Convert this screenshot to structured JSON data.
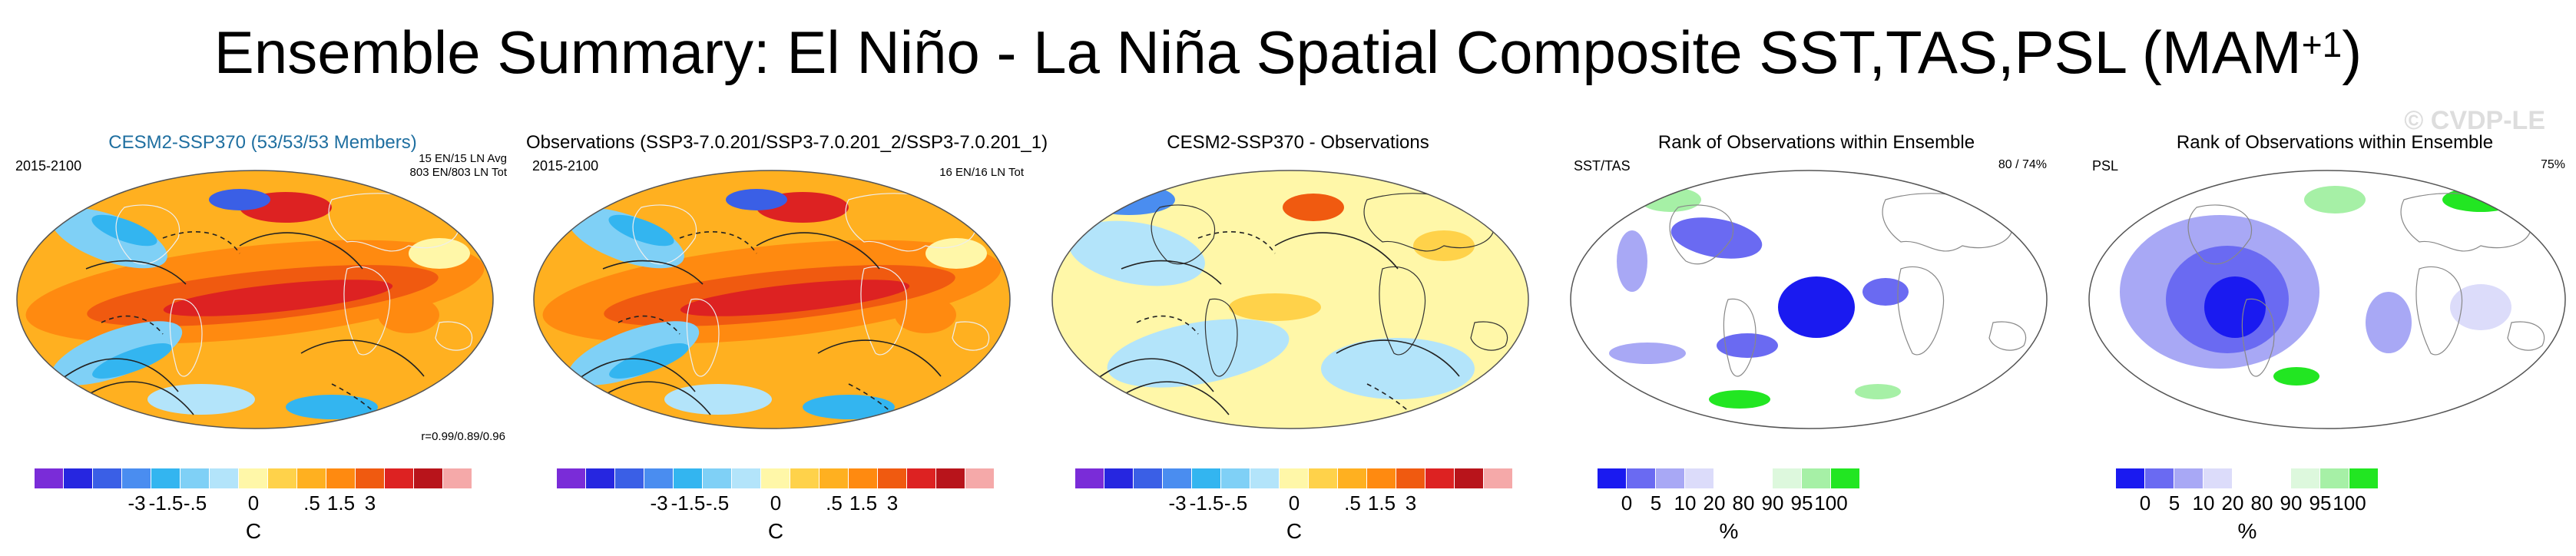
{
  "title": {
    "text": "Ensemble Summary: El Niño - La Niña Spatial Composite SST,TAS,PSL (MAM",
    "superscript": "+1",
    "suffix": ")"
  },
  "watermark": "© CVDP-LE",
  "chart_data": [
    {
      "type": "heatmap",
      "title": "CESM2-SSP370 (53/53/53 Members)",
      "title_color": "#1f6fa0",
      "years": "2015-2100",
      "note_right": [
        "15 EN/15 LN Avg",
        "803 EN/803 LN Tot"
      ],
      "correlation": "r=0.99/0.89/0.96",
      "colorbar": {
        "ticks": [
          "-3",
          "-1.5",
          "-.5",
          "0",
          ".5",
          "1.5",
          "3"
        ],
        "unit": "C",
        "colors": [
          "#7a2cd8",
          "#2626e0",
          "#3a5fe6",
          "#4a8df0",
          "#33b5f0",
          "#7fd0f6",
          "#b3e4fa",
          "#fff7a8",
          "#ffd24a",
          "#ffb020",
          "#ff8a10",
          "#f05a10",
          "#dd2222",
          "#b8141b",
          "#f5a9a9"
        ]
      }
    },
    {
      "type": "heatmap",
      "title": "Observations (SSP3-7.0.201/SSP3-7.0.201_2/SSP3-7.0.201_1)",
      "years": "2015-2100",
      "note_right": [
        "16 EN/16 LN Tot"
      ],
      "colorbar": {
        "ticks": [
          "-3",
          "-1.5",
          "-.5",
          "0",
          ".5",
          "1.5",
          "3"
        ],
        "unit": "C",
        "colors": [
          "#7a2cd8",
          "#2626e0",
          "#3a5fe6",
          "#4a8df0",
          "#33b5f0",
          "#7fd0f6",
          "#b3e4fa",
          "#fff7a8",
          "#ffd24a",
          "#ffb020",
          "#ff8a10",
          "#f05a10",
          "#dd2222",
          "#b8141b",
          "#f5a9a9"
        ]
      }
    },
    {
      "type": "heatmap",
      "title": "CESM2-SSP370 - Observations",
      "colorbar": {
        "ticks": [
          "-3",
          "-1.5",
          "-.5",
          "0",
          ".5",
          "1.5",
          "3"
        ],
        "unit": "C",
        "colors": [
          "#7a2cd8",
          "#2626e0",
          "#3a5fe6",
          "#4a8df0",
          "#33b5f0",
          "#7fd0f6",
          "#b3e4fa",
          "#fff7a8",
          "#ffd24a",
          "#ffb020",
          "#ff8a10",
          "#f05a10",
          "#dd2222",
          "#b8141b",
          "#f5a9a9"
        ]
      }
    },
    {
      "type": "heatmap",
      "title": "Rank of Observations within Ensemble",
      "variable": "SST/TAS",
      "percent": "80 /  74%",
      "colorbar": {
        "ticks": [
          "0",
          "5",
          "10",
          "20",
          "80",
          "90",
          "95",
          "100"
        ],
        "unit": "%",
        "colors": [
          "#1a1af0",
          "#6a6af2",
          "#a8a8f5",
          "#dcdcfa",
          "#ffffff",
          "#ffffff",
          "#ddf8dd",
          "#a6f0a6",
          "#22e622"
        ]
      }
    },
    {
      "type": "heatmap",
      "title": "Rank of Observations within Ensemble",
      "variable": "PSL",
      "percent": "75%",
      "colorbar": {
        "ticks": [
          "0",
          "5",
          "10",
          "20",
          "80",
          "90",
          "95",
          "100"
        ],
        "unit": "%",
        "colors": [
          "#1a1af0",
          "#6a6af2",
          "#a8a8f5",
          "#dcdcfa",
          "#ffffff",
          "#ffffff",
          "#ddf8dd",
          "#a6f0a6",
          "#22e622"
        ]
      }
    }
  ]
}
